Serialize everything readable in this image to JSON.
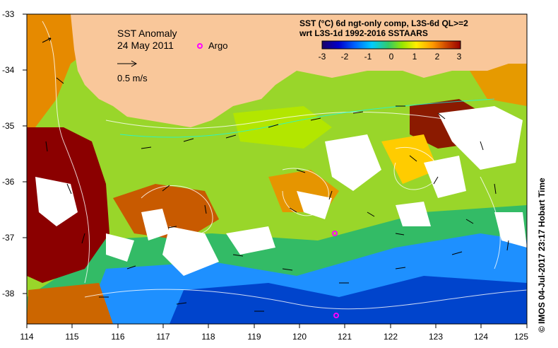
{
  "map": {
    "title": "SST Anomaly",
    "date": "24 May 2011",
    "argo_label": "Argo",
    "vector_scale_label": "0.5 m/s",
    "lat_ticks": [
      "-33",
      "-34",
      "-35",
      "-36",
      "-37",
      "-38"
    ],
    "lon_ticks": [
      "114",
      "115",
      "116",
      "117",
      "118",
      "119",
      "120",
      "121",
      "122",
      "123",
      "124",
      "125"
    ],
    "colorbar": {
      "title_line1": "SST (°C) 6d ngt-only comp, L3S-6d QL>=2",
      "title_line2": "wrt L3S-1d 1992-2016 SSTAARS",
      "ticks": [
        "-3",
        "-2",
        "-1",
        "0",
        "1",
        "2",
        "3"
      ],
      "colors": [
        "#1a0066",
        "#0000cc",
        "#0066ff",
        "#00ccff",
        "#33cc66",
        "#99e600",
        "#ffee00",
        "#ff9900",
        "#cc4400",
        "#990000"
      ]
    },
    "colors": {
      "land": "#f9c79a",
      "cloud": "#ffffff",
      "argo": "#ff00ff"
    },
    "credit": "© IMOS 04-Jul-2017 23:17 Hobart Time"
  }
}
